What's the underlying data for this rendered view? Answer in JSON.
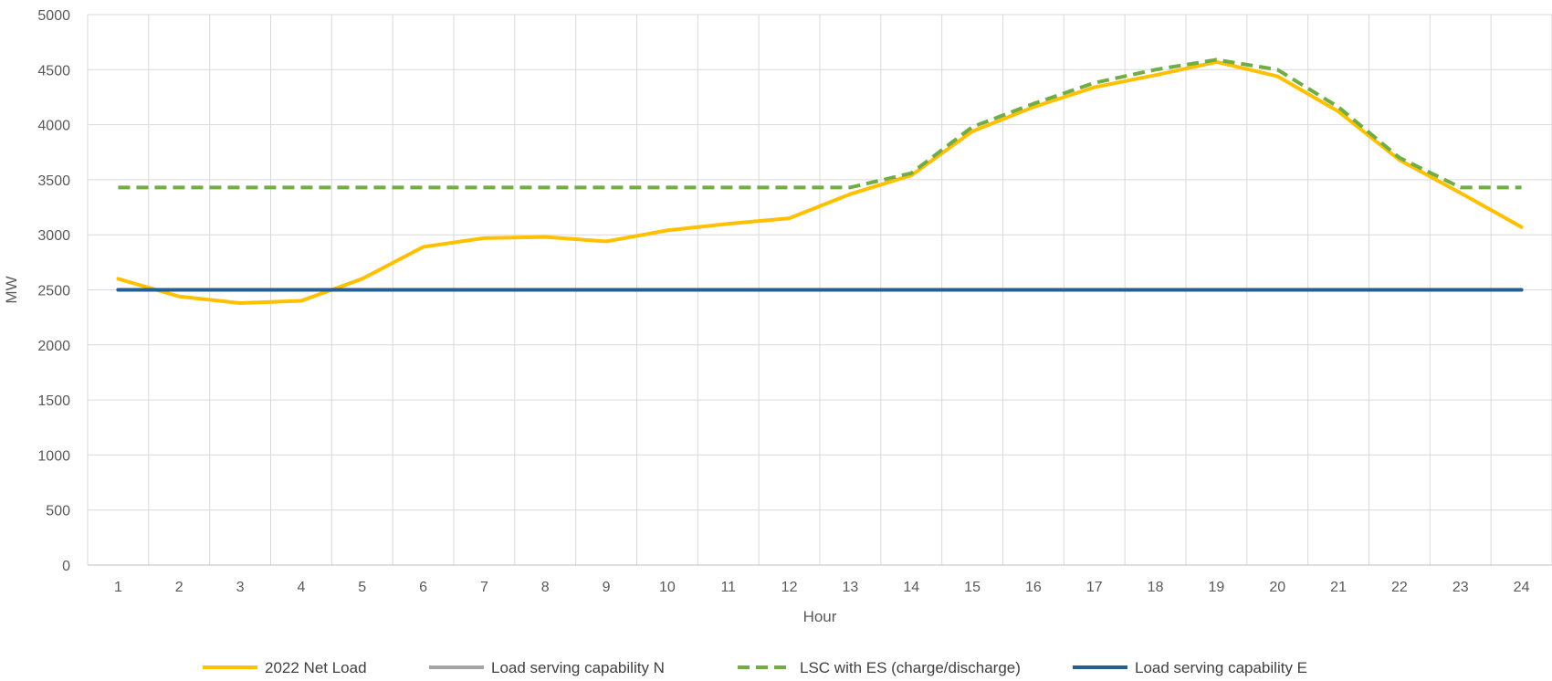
{
  "chart_data": {
    "type": "line",
    "title": "",
    "xlabel": "Hour",
    "ylabel": "MW",
    "x": [
      1,
      2,
      3,
      4,
      5,
      6,
      7,
      8,
      9,
      10,
      11,
      12,
      13,
      14,
      15,
      16,
      17,
      18,
      19,
      20,
      21,
      22,
      23,
      24
    ],
    "x_tick_labels": [
      "1",
      "2",
      "3",
      "4",
      "5",
      "6",
      "7",
      "8",
      "9",
      "10",
      "11",
      "12",
      "13",
      "14",
      "15",
      "16",
      "17",
      "18",
      "19",
      "20",
      "21",
      "22",
      "23",
      "24"
    ],
    "ylim": [
      0,
      5000
    ],
    "y_ticks": [
      0,
      500,
      1000,
      1500,
      2000,
      2500,
      3000,
      3500,
      4000,
      4500,
      5000
    ],
    "y_tick_labels": [
      "0",
      "500",
      "1000",
      "1500",
      "2000",
      "2500",
      "3000",
      "3500",
      "4000",
      "4500",
      "5000"
    ],
    "grid": true,
    "legend_position": "bottom",
    "series": [
      {
        "name": "2022 Net Load",
        "color": "#FFC000",
        "style": "solid",
        "values": [
          2600,
          2440,
          2380,
          2400,
          2600,
          2890,
          2970,
          2980,
          2940,
          3040,
          3100,
          3150,
          3370,
          3540,
          3940,
          4160,
          4340,
          4450,
          4570,
          4440,
          4120,
          3680,
          3380,
          3070
        ]
      },
      {
        "name": "Load serving capability N",
        "color": "#A5A5A5",
        "style": "solid",
        "values": [
          2500,
          2500,
          2500,
          2500,
          2500,
          2500,
          2500,
          2500,
          2500,
          2500,
          2500,
          2500,
          2500,
          2500,
          2500,
          2500,
          2500,
          2500,
          2500,
          2500,
          2500,
          2500,
          2500,
          2500
        ]
      },
      {
        "name": "LSC with ES (charge/discharge)",
        "color": "#70AD47",
        "style": "dashed",
        "values": [
          3430,
          3430,
          3430,
          3430,
          3430,
          3430,
          3430,
          3430,
          3430,
          3430,
          3430,
          3430,
          3430,
          3560,
          3980,
          4190,
          4380,
          4500,
          4590,
          4500,
          4160,
          3700,
          3430,
          3430
        ]
      },
      {
        "name": "Load serving capability E",
        "color": "#255E91",
        "style": "solid",
        "values": [
          2500,
          2500,
          2500,
          2500,
          2500,
          2500,
          2500,
          2500,
          2500,
          2500,
          2500,
          2500,
          2500,
          2500,
          2500,
          2500,
          2500,
          2500,
          2500,
          2500,
          2500,
          2500,
          2500,
          2500
        ]
      }
    ]
  }
}
